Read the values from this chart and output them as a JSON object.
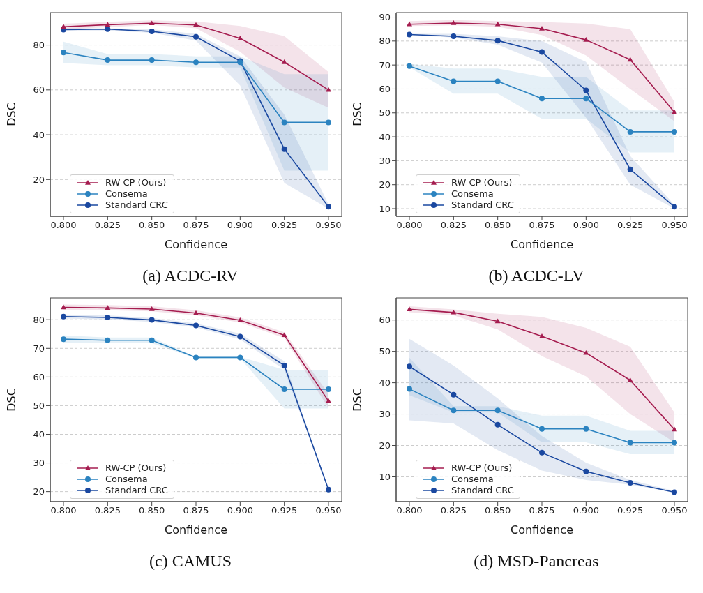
{
  "chart_data": [
    {
      "type": "line",
      "title": "(a) ACDC-RV",
      "xlabel": "Confidence",
      "ylabel": "DSC",
      "x": [
        0.8,
        0.825,
        0.85,
        0.875,
        0.9,
        0.925,
        0.95
      ],
      "xlim": [
        0.7925,
        0.9575
      ],
      "xticks": [
        {
          "value": 0.8,
          "label": "0.800"
        },
        {
          "value": 0.825,
          "label": "0.825"
        },
        {
          "value": 0.85,
          "label": "0.850"
        },
        {
          "value": 0.875,
          "label": "0.875"
        },
        {
          "value": 0.9,
          "label": "0.900"
        },
        {
          "value": 0.925,
          "label": "0.925"
        },
        {
          "value": 0.95,
          "label": "0.950"
        }
      ],
      "ylim": [
        3.6,
        94.5
      ],
      "yticks": [
        20,
        40,
        60,
        80
      ],
      "grid": "y",
      "legend": "bottom left",
      "line_style": "solid",
      "series": [
        {
          "name": "RW-CP (Ours)",
          "color": "#a51c4f",
          "marker": "triangle",
          "values": [
            88.2,
            89.1,
            89.7,
            89.0,
            83.0,
            72.4,
            60.0
          ],
          "lower": [
            87,
            88,
            89,
            87.5,
            77,
            61,
            52
          ],
          "upper": [
            89.5,
            90.4,
            91,
            90.5,
            88.5,
            84,
            68
          ]
        },
        {
          "name": "Consema",
          "color": "#2b83c0",
          "marker": "circle",
          "values": [
            76.7,
            73.3,
            73.3,
            72.3,
            72.3,
            45.5,
            45.5
          ],
          "lower": [
            72,
            71,
            71,
            70,
            70,
            24,
            24
          ],
          "upper": [
            81.5,
            76,
            76,
            75,
            75,
            67,
            67
          ]
        },
        {
          "name": "Standard CRC",
          "color": "#1a48a0",
          "marker": "circle",
          "values": [
            86.9,
            87.1,
            86.1,
            83.7,
            72.9,
            33.6,
            7.9
          ],
          "lower": [
            86.5,
            86.5,
            85.5,
            82,
            62,
            18.5,
            7
          ],
          "upper": [
            87.5,
            87.5,
            87,
            85,
            75,
            49,
            9
          ]
        }
      ]
    },
    {
      "type": "line",
      "title": "(b) ACDC-LV",
      "xlabel": "Confidence",
      "ylabel": "DSC",
      "x": [
        0.8,
        0.825,
        0.85,
        0.875,
        0.9,
        0.925,
        0.95
      ],
      "xlim": [
        0.7925,
        0.9575
      ],
      "xticks": [
        {
          "value": 0.8,
          "label": "0.800"
        },
        {
          "value": 0.825,
          "label": "0.825"
        },
        {
          "value": 0.85,
          "label": "0.850"
        },
        {
          "value": 0.875,
          "label": "0.875"
        },
        {
          "value": 0.9,
          "label": "0.900"
        },
        {
          "value": 0.925,
          "label": "0.925"
        },
        {
          "value": 0.95,
          "label": "0.950"
        }
      ],
      "ylim": [
        6.8,
        91.9
      ],
      "yticks": [
        10,
        20,
        30,
        40,
        50,
        60,
        70,
        80,
        90
      ],
      "grid": "y",
      "legend": "bottom left",
      "line_style": "solid",
      "series": [
        {
          "name": "RW-CP (Ours)",
          "color": "#a51c4f",
          "marker": "triangle",
          "values": [
            87.0,
            87.5,
            87.0,
            85.2,
            80.5,
            72.2,
            50.3
          ],
          "lower": [
            86.3,
            86.6,
            86,
            82.5,
            74,
            60,
            46.5
          ],
          "upper": [
            88.3,
            88.8,
            88.3,
            88,
            87.3,
            85,
            54.5
          ]
        },
        {
          "name": "Consema",
          "color": "#2b83c0",
          "marker": "circle",
          "values": [
            69.5,
            63.2,
            63.2,
            56.0,
            56.0,
            42.1,
            42.1
          ],
          "lower": [
            69,
            58,
            58,
            47.5,
            47.5,
            33.5,
            33.5
          ],
          "upper": [
            70.5,
            68.5,
            68.5,
            65,
            65,
            51,
            51
          ]
        },
        {
          "name": "Standard CRC",
          "color": "#1a48a0",
          "marker": "circle",
          "values": [
            82.7,
            82.0,
            80.2,
            75.4,
            59.4,
            26.4,
            10.8
          ],
          "lower": [
            82.5,
            81.5,
            78.5,
            71,
            48,
            20,
            10
          ],
          "upper": [
            83,
            83,
            82,
            80,
            71.3,
            32,
            11.5
          ]
        }
      ]
    },
    {
      "type": "line",
      "title": "(c) CAMUS",
      "xlabel": "Confidence",
      "ylabel": "DSC",
      "x": [
        0.8,
        0.825,
        0.85,
        0.875,
        0.9,
        0.925,
        0.95
      ],
      "xlim": [
        0.7925,
        0.9575
      ],
      "xticks": [
        {
          "value": 0.8,
          "label": "0.800"
        },
        {
          "value": 0.825,
          "label": "0.825"
        },
        {
          "value": 0.85,
          "label": "0.850"
        },
        {
          "value": 0.875,
          "label": "0.875"
        },
        {
          "value": 0.9,
          "label": "0.900"
        },
        {
          "value": 0.925,
          "label": "0.925"
        },
        {
          "value": 0.95,
          "label": "0.950"
        }
      ],
      "ylim": [
        16.5,
        87.6
      ],
      "yticks": [
        20,
        30,
        40,
        50,
        60,
        70,
        80
      ],
      "grid": "y",
      "legend": "bottom left",
      "line_style": "solid",
      "series": [
        {
          "name": "RW-CP (Ours)",
          "color": "#a51c4f",
          "marker": "triangle",
          "values": [
            84.3,
            84.1,
            83.7,
            82.3,
            79.8,
            74.6,
            51.6
          ],
          "lower": [
            83.5,
            83.3,
            82.9,
            81.5,
            79.0,
            73.6,
            49.1
          ],
          "upper": [
            85.3,
            85.1,
            84.7,
            83.3,
            80.8,
            75.6,
            54.1
          ]
        },
        {
          "name": "Consema",
          "color": "#2b83c0",
          "marker": "circle",
          "values": [
            73.2,
            72.8,
            72.8,
            66.8,
            66.8,
            55.7,
            55.7
          ],
          "lower": [
            72,
            71.8,
            71.8,
            66.5,
            66.5,
            49,
            49
          ],
          "upper": [
            74.5,
            73.8,
            73.8,
            67,
            67,
            62.5,
            62.5
          ]
        },
        {
          "name": "Standard CRC",
          "color": "#1a48a0",
          "marker": "circle",
          "values": [
            81.1,
            80.8,
            79.9,
            78.0,
            74.1,
            64.0,
            20.7
          ],
          "lower": [
            80.4,
            80.1,
            79.2,
            77.3,
            73.1,
            62.5,
            20.2
          ],
          "upper": [
            81.8,
            81.5,
            80.6,
            78.7,
            75.1,
            65.5,
            21.2
          ]
        }
      ]
    },
    {
      "type": "line",
      "title": "(d) MSD-Pancreas",
      "xlabel": "Confidence",
      "ylabel": "DSC",
      "x": [
        0.8,
        0.825,
        0.85,
        0.875,
        0.9,
        0.925,
        0.95
      ],
      "xlim": [
        0.7925,
        0.9575
      ],
      "xticks": [
        {
          "value": 0.8,
          "label": "0.800"
        },
        {
          "value": 0.825,
          "label": "0.825"
        },
        {
          "value": 0.85,
          "label": "0.850"
        },
        {
          "value": 0.875,
          "label": "0.875"
        },
        {
          "value": 0.9,
          "label": "0.900"
        },
        {
          "value": 0.925,
          "label": "0.925"
        },
        {
          "value": 0.95,
          "label": "0.950"
        }
      ],
      "ylim": [
        2.1,
        67.05
      ],
      "yticks": [
        10,
        20,
        30,
        40,
        50,
        60
      ],
      "grid": "y",
      "legend": "bottom left",
      "line_style": "solid",
      "series": [
        {
          "name": "RW-CP (Ours)",
          "color": "#a51c4f",
          "marker": "triangle",
          "values": [
            63.4,
            62.4,
            59.6,
            54.8,
            49.5,
            40.8,
            25.1
          ],
          "lower": [
            62.5,
            61.5,
            57,
            48.5,
            42,
            30,
            21
          ],
          "upper": [
            64.4,
            63.4,
            62,
            61,
            57.5,
            51.5,
            30.5
          ]
        },
        {
          "name": "Consema",
          "color": "#2b83c0",
          "marker": "circle",
          "values": [
            38.0,
            31.2,
            31.2,
            25.3,
            25.3,
            20.9,
            20.9
          ],
          "lower": [
            36,
            30.5,
            30.5,
            21,
            21,
            17.2,
            17.2
          ],
          "upper": [
            48,
            32.5,
            32.5,
            29.5,
            29.5,
            24.7,
            24.7
          ]
        },
        {
          "name": "Standard CRC",
          "color": "#1a48a0",
          "marker": "circle",
          "values": [
            45.2,
            36.2,
            26.6,
            17.7,
            11.7,
            8.1,
            5.1
          ],
          "lower": [
            28,
            27,
            18.5,
            12,
            9,
            7.5,
            5
          ],
          "upper": [
            54,
            45.5,
            35,
            23,
            14.5,
            9,
            5.5
          ]
        }
      ]
    }
  ]
}
